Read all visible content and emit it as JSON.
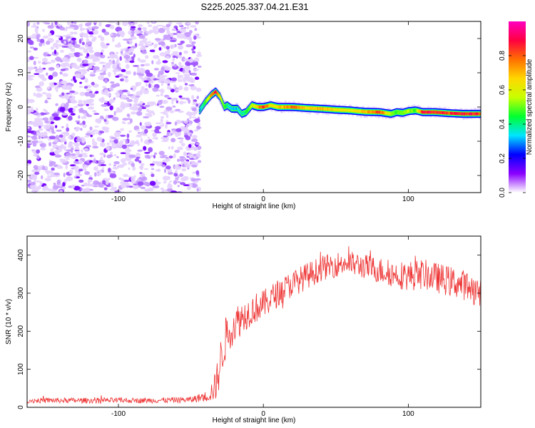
{
  "title": "S225.2025.337.04.21.E31",
  "chart_data": [
    {
      "type": "heatmap",
      "name": "spectrogram",
      "xlabel": "Height of straight line (km)",
      "ylabel": "Frequency (Hz)",
      "xlim": [
        -163,
        150
      ],
      "ylim": [
        -25,
        25
      ],
      "xticks": [
        -100,
        0,
        100
      ],
      "xtick_labels": [
        "-100",
        "0",
        "100"
      ],
      "yticks": [
        -20,
        -10,
        0,
        10,
        20
      ],
      "ytick_labels": [
        "-20",
        "-10",
        "0",
        "10",
        "20"
      ],
      "noise_region_x": [
        -163,
        -44
      ],
      "signal_trace": {
        "x": [
          -44,
          -40,
          -36,
          -33,
          -30,
          -27,
          -25,
          -22,
          -18,
          -15,
          -12,
          -8,
          -4,
          0,
          5,
          10,
          20,
          30,
          40,
          50,
          60,
          70,
          80,
          88,
          92,
          96,
          100,
          105,
          110,
          118,
          128,
          138,
          150
        ],
        "freq": [
          -1,
          1.5,
          3.5,
          4.5,
          3,
          0,
          0.5,
          -0.5,
          -0.5,
          -2,
          -1.5,
          0.5,
          0,
          0,
          0.5,
          0,
          0,
          -0.3,
          -0.5,
          -0.8,
          -1,
          -1.4,
          -1.5,
          -2,
          -1.5,
          -1.7,
          -1.2,
          -1,
          -1.5,
          -1.5,
          -1.8,
          -2,
          -2
        ],
        "amplitude": [
          0.3,
          0.5,
          0.8,
          0.95,
          0.7,
          0.5,
          0.4,
          0.35,
          0.35,
          0.4,
          0.45,
          0.6,
          0.75,
          0.95,
          0.7,
          0.7,
          0.85,
          0.7,
          0.75,
          0.7,
          0.65,
          0.75,
          0.9,
          0.55,
          0.5,
          0.55,
          0.6,
          0.5,
          0.95,
          0.95,
          0.9,
          0.95,
          0.9
        ]
      },
      "colorbar": {
        "label": "Normalized spectral amplitude",
        "range": [
          0,
          1
        ],
        "ticks": [
          0.0,
          0.2,
          0.4,
          0.6,
          0.8
        ],
        "tick_labels": [
          "0.0",
          "0.2",
          "0.4",
          "0.6",
          "0.8"
        ],
        "colormap": [
          "#ffffff",
          "#8a00ff",
          "#0000ff",
          "#00e5ff",
          "#00ff30",
          "#c8ff00",
          "#ffd700",
          "#ff7000",
          "#ff0040",
          "#ff00c0"
        ]
      }
    },
    {
      "type": "line",
      "name": "snr",
      "xlabel": "Height of straight line (km)",
      "ylabel": "SNR (10 * v/v)",
      "xlim": [
        -163,
        150
      ],
      "ylim": [
        0,
        450
      ],
      "xticks": [
        -100,
        0,
        100
      ],
      "xtick_labels": [
        "-100",
        "0",
        "100"
      ],
      "yticks": [
        0,
        100,
        200,
        300,
        400
      ],
      "ytick_labels": [
        "0",
        "100",
        "200",
        "300",
        "400"
      ],
      "color": "#ee3333",
      "envelope": {
        "x": [
          -163,
          -120,
          -80,
          -50,
          -38,
          -33,
          -30,
          -27,
          -24,
          -20,
          -15,
          -10,
          -5,
          0,
          5,
          10,
          20,
          30,
          40,
          50,
          55,
          60,
          70,
          80,
          90,
          100,
          110,
          120,
          130,
          140,
          150
        ],
        "mean": [
          18,
          18,
          18,
          20,
          30,
          55,
          110,
          170,
          200,
          220,
          235,
          250,
          262,
          270,
          285,
          300,
          325,
          345,
          365,
          375,
          380,
          378,
          370,
          360,
          350,
          345,
          350,
          340,
          330,
          320,
          300
        ],
        "spread": [
          7,
          7,
          7,
          8,
          15,
          40,
          60,
          60,
          55,
          50,
          45,
          40,
          40,
          38,
          38,
          36,
          35,
          35,
          33,
          33,
          33,
          33,
          33,
          35,
          35,
          40,
          40,
          40,
          40,
          40,
          40
        ]
      }
    }
  ]
}
